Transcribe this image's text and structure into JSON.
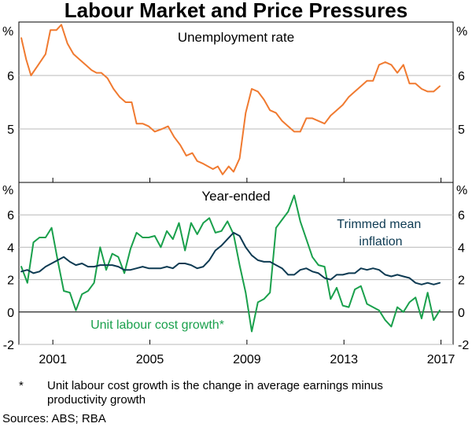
{
  "chart_data": {
    "type": "line",
    "title": "Labour Market and Price Pressures",
    "x_tick_labels": [
      "2001",
      "2005",
      "2009",
      "2013",
      "2017"
    ],
    "x_tick_years": [
      2001,
      2005,
      2009,
      2013,
      2017
    ],
    "xlim": [
      1999.6,
      2017.5
    ],
    "colors": {
      "unemployment": "#f07a30",
      "ulc": "#1aa04c",
      "trimmed_mean": "#0d3a52",
      "grid": "#b9b9b9",
      "axis": "#000000"
    },
    "panels": [
      {
        "id": "unemployment",
        "panel_title": "Unemployment rate",
        "unit_label": "%",
        "ylim": [
          4,
          7
        ],
        "y_ticks": [
          5,
          6
        ],
        "y_tick_labels": [
          "5",
          "6"
        ],
        "series": [
          {
            "name": "Unemployment rate",
            "color_key": "unemployment",
            "x": [
              1999.7,
              1999.9,
              2000.1,
              2000.4,
              2000.7,
              2000.9,
              2001.15,
              2001.35,
              2001.6,
              2001.85,
              2002.1,
              2002.35,
              2002.6,
              2002.8,
              2003.0,
              2003.25,
              2003.5,
              2003.75,
              2004.0,
              2004.25,
              2004.45,
              2004.7,
              2004.95,
              2005.2,
              2005.5,
              2005.75,
              2006.0,
              2006.25,
              2006.5,
              2006.75,
              2006.95,
              2007.2,
              2007.4,
              2007.6,
              2007.8,
              2008.0,
              2008.25,
              2008.45,
              2008.7,
              2008.95,
              2009.2,
              2009.45,
              2009.7,
              2009.95,
              2010.2,
              2010.45,
              2010.7,
              2010.95,
              2011.2,
              2011.45,
              2011.7,
              2011.95,
              2012.2,
              2012.45,
              2012.7,
              2012.95,
              2013.2,
              2013.45,
              2013.7,
              2013.95,
              2014.2,
              2014.45,
              2014.7,
              2014.95,
              2015.2,
              2015.45,
              2015.7,
              2015.95,
              2016.2,
              2016.45,
              2016.7,
              2016.95
            ],
            "y": [
              6.7,
              6.3,
              6.0,
              6.2,
              6.4,
              6.85,
              6.85,
              6.95,
              6.6,
              6.4,
              6.3,
              6.2,
              6.1,
              6.05,
              6.05,
              5.95,
              5.75,
              5.6,
              5.5,
              5.5,
              5.1,
              5.1,
              5.05,
              4.95,
              5.0,
              5.05,
              4.85,
              4.7,
              4.5,
              4.55,
              4.4,
              4.35,
              4.3,
              4.25,
              4.3,
              4.15,
              4.3,
              4.2,
              4.45,
              5.3,
              5.75,
              5.7,
              5.55,
              5.35,
              5.3,
              5.15,
              5.05,
              4.95,
              4.95,
              5.2,
              5.2,
              5.15,
              5.1,
              5.25,
              5.35,
              5.45,
              5.6,
              5.7,
              5.8,
              5.9,
              5.9,
              6.2,
              6.25,
              6.2,
              6.05,
              6.2,
              5.85,
              5.85,
              5.75,
              5.7,
              5.7,
              5.8
            ]
          }
        ]
      },
      {
        "id": "inflation",
        "panel_title": "Year-ended",
        "unit_label": "%",
        "ylim": [
          -2,
          8
        ],
        "y_ticks": [
          -2,
          0,
          2,
          4,
          6
        ],
        "y_tick_labels": [
          "-2",
          "0",
          "2",
          "4",
          "6"
        ],
        "series": [
          {
            "name": "Unit labour cost growth*",
            "color_key": "ulc",
            "x": [
              1999.7,
              1999.95,
              2000.2,
              2000.45,
              2000.7,
              2000.95,
              2001.2,
              2001.45,
              2001.7,
              2001.95,
              2002.2,
              2002.45,
              2002.7,
              2002.95,
              2003.2,
              2003.45,
              2003.7,
              2003.95,
              2004.2,
              2004.45,
              2004.7,
              2004.95,
              2005.2,
              2005.45,
              2005.7,
              2005.95,
              2006.2,
              2006.45,
              2006.7,
              2006.95,
              2007.2,
              2007.45,
              2007.7,
              2007.95,
              2008.2,
              2008.45,
              2008.7,
              2008.95,
              2009.2,
              2009.45,
              2009.7,
              2009.95,
              2010.2,
              2010.45,
              2010.7,
              2010.95,
              2011.2,
              2011.45,
              2011.7,
              2011.95,
              2012.2,
              2012.45,
              2012.7,
              2012.95,
              2013.2,
              2013.45,
              2013.7,
              2013.95,
              2014.2,
              2014.45,
              2014.7,
              2014.95,
              2015.2,
              2015.45,
              2015.7,
              2015.95,
              2016.2,
              2016.45,
              2016.7,
              2016.95
            ],
            "y": [
              2.8,
              1.8,
              4.3,
              4.6,
              4.6,
              5.2,
              3.2,
              1.3,
              1.2,
              0.1,
              1.1,
              1.3,
              1.8,
              4.0,
              2.6,
              3.6,
              3.4,
              2.4,
              3.9,
              4.9,
              4.6,
              4.6,
              4.7,
              4.0,
              5.0,
              4.5,
              5.5,
              3.8,
              5.5,
              4.8,
              5.5,
              5.8,
              4.9,
              5.0,
              5.6,
              4.8,
              2.9,
              1.2,
              -1.2,
              0.6,
              0.8,
              1.2,
              5.2,
              5.7,
              6.2,
              7.2,
              5.6,
              4.5,
              3.4,
              2.9,
              2.8,
              0.8,
              1.5,
              0.4,
              0.3,
              1.4,
              1.6,
              0.5,
              0.3,
              0.1,
              -0.5,
              -0.9,
              0.3,
              0.0,
              0.6,
              0.9,
              -0.4,
              1.2,
              -0.5,
              0.1
            ]
          },
          {
            "name": "Trimmed mean inflation",
            "color_key": "trimmed_mean",
            "x": [
              1999.7,
              1999.95,
              2000.2,
              2000.45,
              2000.7,
              2000.95,
              2001.2,
              2001.45,
              2001.7,
              2001.95,
              2002.2,
              2002.45,
              2002.7,
              2002.95,
              2003.2,
              2003.45,
              2003.7,
              2003.95,
              2004.2,
              2004.45,
              2004.7,
              2004.95,
              2005.2,
              2005.45,
              2005.7,
              2005.95,
              2006.2,
              2006.45,
              2006.7,
              2006.95,
              2007.2,
              2007.45,
              2007.7,
              2007.95,
              2008.2,
              2008.45,
              2008.7,
              2008.95,
              2009.2,
              2009.45,
              2009.7,
              2009.95,
              2010.2,
              2010.45,
              2010.7,
              2010.95,
              2011.2,
              2011.45,
              2011.7,
              2011.95,
              2012.2,
              2012.45,
              2012.7,
              2012.95,
              2013.2,
              2013.45,
              2013.7,
              2013.95,
              2014.2,
              2014.45,
              2014.7,
              2014.95,
              2015.2,
              2015.45,
              2015.7,
              2015.95,
              2016.2,
              2016.45,
              2016.7,
              2016.95
            ],
            "y": [
              2.5,
              2.6,
              2.4,
              2.5,
              2.8,
              3.0,
              3.2,
              3.4,
              3.1,
              2.9,
              3.0,
              2.8,
              2.8,
              2.9,
              2.9,
              2.9,
              2.8,
              2.6,
              2.6,
              2.7,
              2.8,
              2.7,
              2.7,
              2.7,
              2.8,
              2.7,
              3.0,
              3.0,
              2.9,
              2.7,
              2.8,
              3.2,
              3.8,
              4.1,
              4.5,
              4.9,
              4.7,
              4.0,
              3.5,
              3.2,
              3.1,
              3.1,
              2.9,
              2.7,
              2.3,
              2.3,
              2.6,
              2.7,
              2.5,
              2.4,
              2.1,
              2.0,
              2.3,
              2.3,
              2.4,
              2.4,
              2.7,
              2.6,
              2.7,
              2.6,
              2.3,
              2.2,
              2.3,
              2.2,
              2.1,
              1.8,
              1.7,
              1.8,
              1.7,
              1.8
            ]
          }
        ],
        "annotations": [
          {
            "id": "trimmed-mean-label",
            "text_lines": [
              "Trimmed mean",
              "inflation"
            ],
            "color_key": "trimmed_mean"
          },
          {
            "id": "ulc-label",
            "text_lines": [
              "Unit labour cost growth*"
            ],
            "color_key": "ulc"
          }
        ]
      }
    ],
    "footnote_marker": "*",
    "footnote_lines": [
      "Unit labour cost growth is the change in average earnings minus",
      "productivity growth"
    ],
    "sources": "Sources: ABS; RBA"
  }
}
